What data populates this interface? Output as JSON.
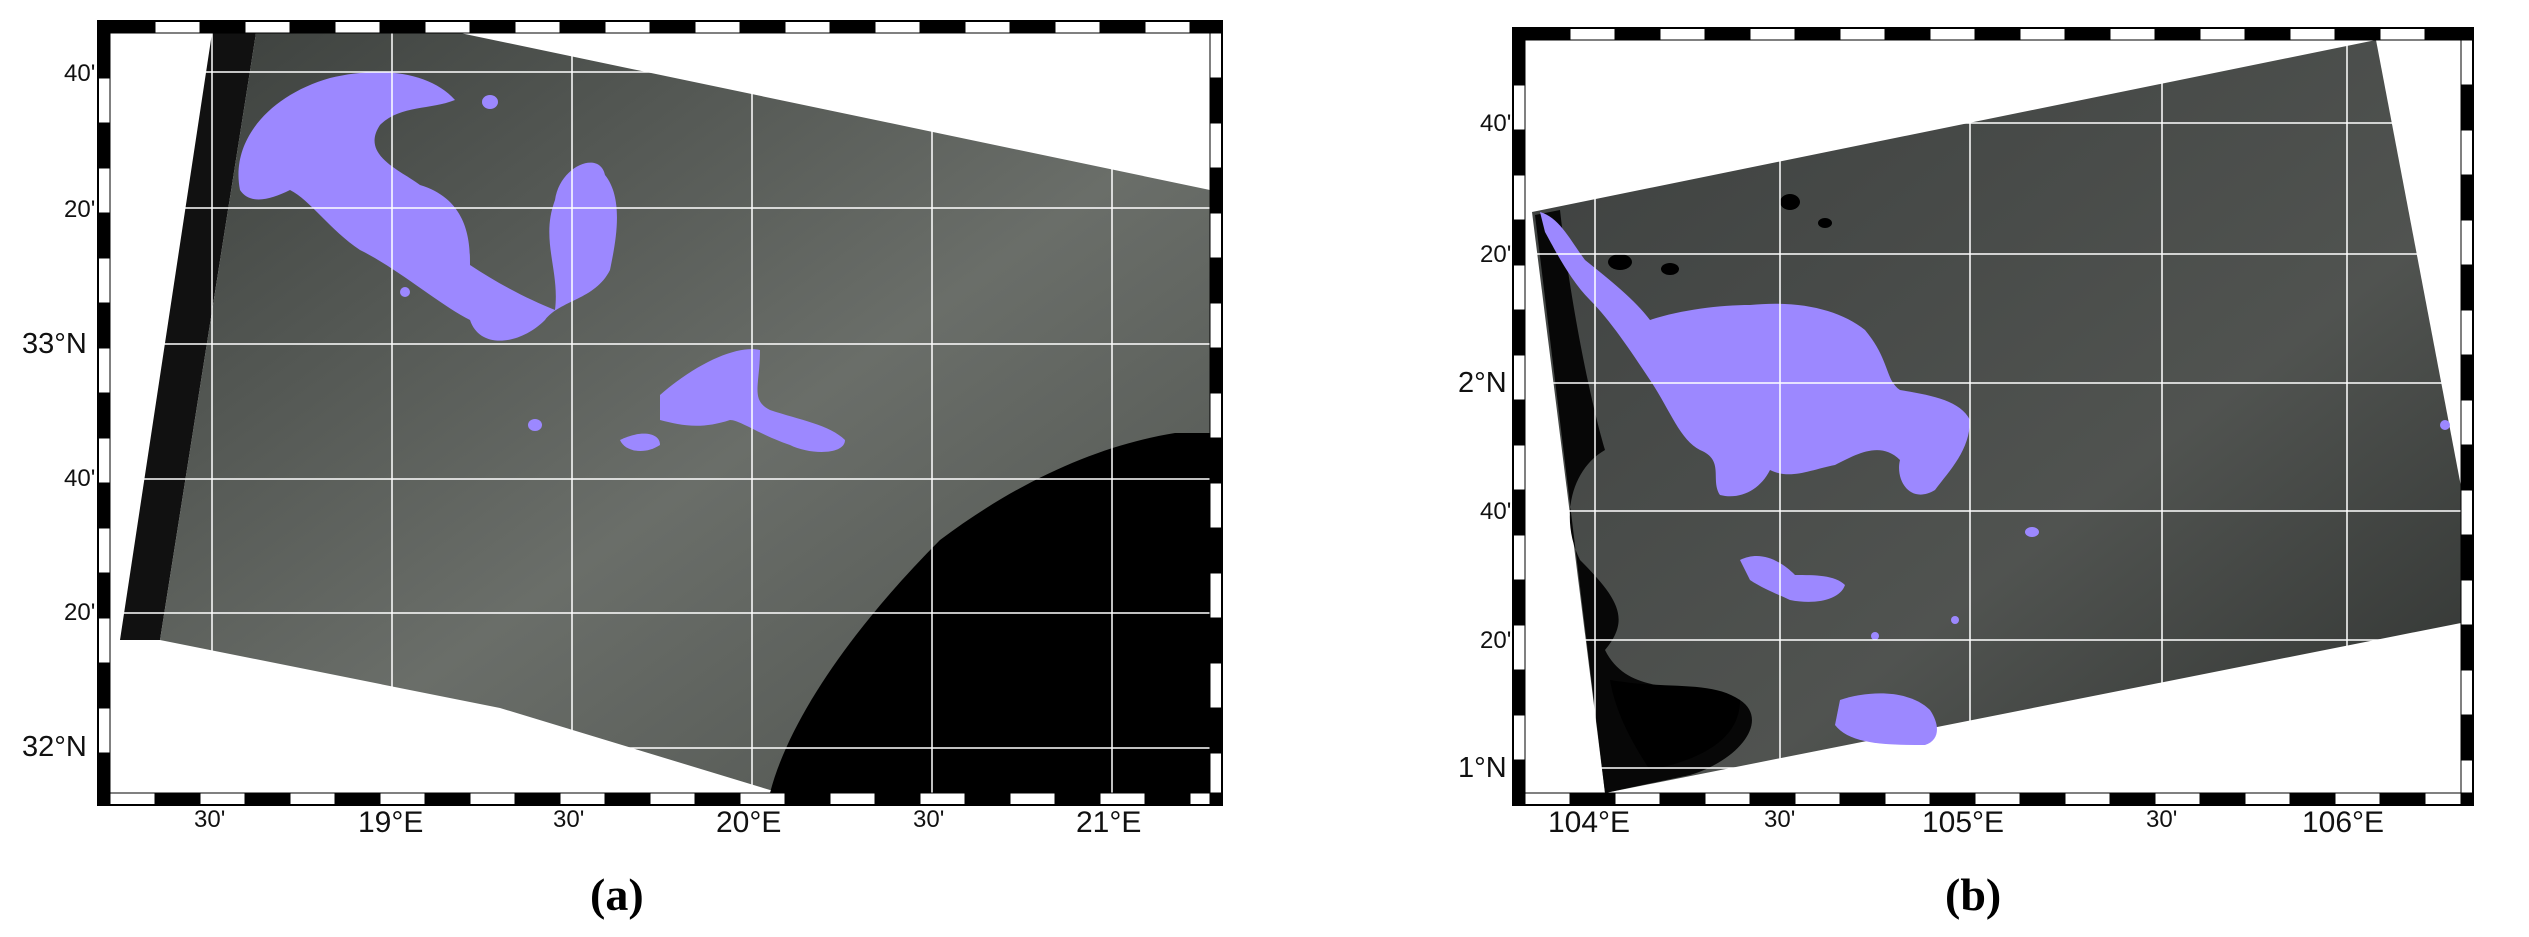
{
  "colors": {
    "sar_ocean": "#5a5e59",
    "sar_dark": "#2d302e",
    "land_mask": "#000000",
    "oil_highlight": "#9c88ff",
    "grid": "#ffffff",
    "frame_dark": "#000000",
    "frame_light": "#ffffff"
  },
  "panels": [
    {
      "id": "a",
      "caption": "(a)",
      "lon_labels": [
        "30'",
        "19°E",
        "30'",
        "20°E",
        "30'",
        "21°E"
      ],
      "lat_labels": [
        "40'",
        "20'",
        "33°N",
        "40'",
        "20'",
        "32°N"
      ]
    },
    {
      "id": "b",
      "caption": "(b)",
      "lon_labels": [
        "104°E",
        "30'",
        "105°E",
        "30'",
        "106°E"
      ],
      "lat_labels": [
        "40'",
        "20'",
        "2°N",
        "40'",
        "20'",
        "1°N"
      ]
    }
  ]
}
